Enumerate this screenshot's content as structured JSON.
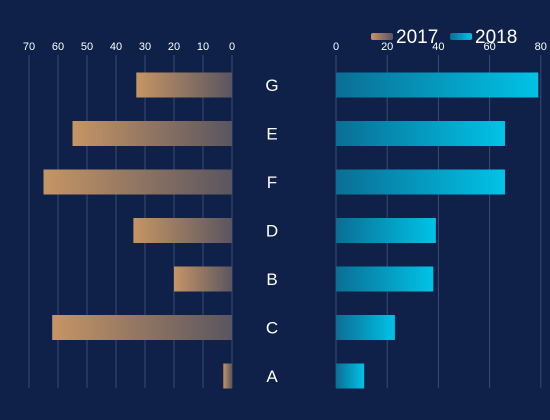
{
  "chart_data": {
    "type": "bar",
    "orientation": "horizontal-butterfly",
    "categories": [
      "G",
      "E",
      "F",
      "D",
      "B",
      "C",
      "A"
    ],
    "series": [
      {
        "name": "2017",
        "values": [
          33,
          55,
          65,
          34,
          20,
          62,
          3
        ],
        "xlim": [
          0,
          70
        ],
        "ticks": [
          70,
          60,
          50,
          40,
          30,
          20,
          10,
          0
        ],
        "side": "left"
      },
      {
        "name": "2018",
        "values": [
          79,
          66,
          66,
          39,
          38,
          23,
          11
        ],
        "xlim": [
          0,
          80
        ],
        "ticks": [
          0,
          20,
          40,
          60,
          80
        ],
        "side": "right"
      }
    ],
    "legend_position": "top-right",
    "grid": true
  },
  "colors": {
    "background": "#0f2149",
    "left_bar_start": "#c69564",
    "left_bar_end": "#5a5560",
    "right_bar_start": "#0b6e95",
    "right_bar_end": "#00c3e6",
    "grid": "#3a4b70"
  }
}
